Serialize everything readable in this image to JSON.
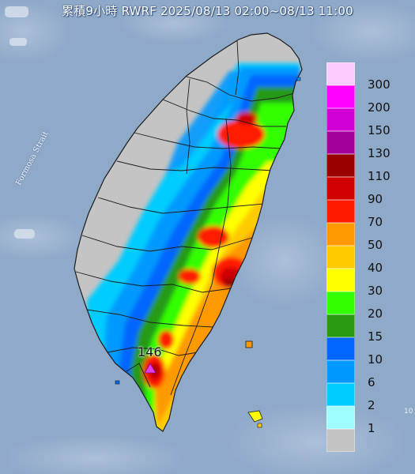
{
  "title": "累積9小時 RWRF 2025/08/13 02:00~08/13 11:00",
  "sea_label": "Formosa Strait",
  "edge_label": "10",
  "peak": {
    "value": "146",
    "marker_color": "#e23ce6"
  },
  "colors": {
    "sea": "#8fa9c9",
    "land_none": "#c4c4c4",
    "border": "#2a2a2a"
  },
  "legend": [
    {
      "label": "300",
      "color": "#fccbff"
    },
    {
      "label": "200",
      "color": "#fe00ff"
    },
    {
      "label": "150",
      "color": "#d000d4"
    },
    {
      "label": "130",
      "color": "#a20098"
    },
    {
      "label": "110",
      "color": "#9a0000"
    },
    {
      "label": "90",
      "color": "#d00000"
    },
    {
      "label": "70",
      "color": "#ff1a00"
    },
    {
      "label": "50",
      "color": "#ff9900"
    },
    {
      "label": "40",
      "color": "#ffcb00"
    },
    {
      "label": "30",
      "color": "#ffff00"
    },
    {
      "label": "20",
      "color": "#33ff00"
    },
    {
      "label": "15",
      "color": "#279a12"
    },
    {
      "label": "10",
      "color": "#0066ff"
    },
    {
      "label": "6",
      "color": "#0099ff"
    },
    {
      "label": "2",
      "color": "#00ccff"
    },
    {
      "label": "1",
      "color": "#9ffeff"
    },
    {
      "label": "",
      "color": "#c4c4c4"
    }
  ]
}
